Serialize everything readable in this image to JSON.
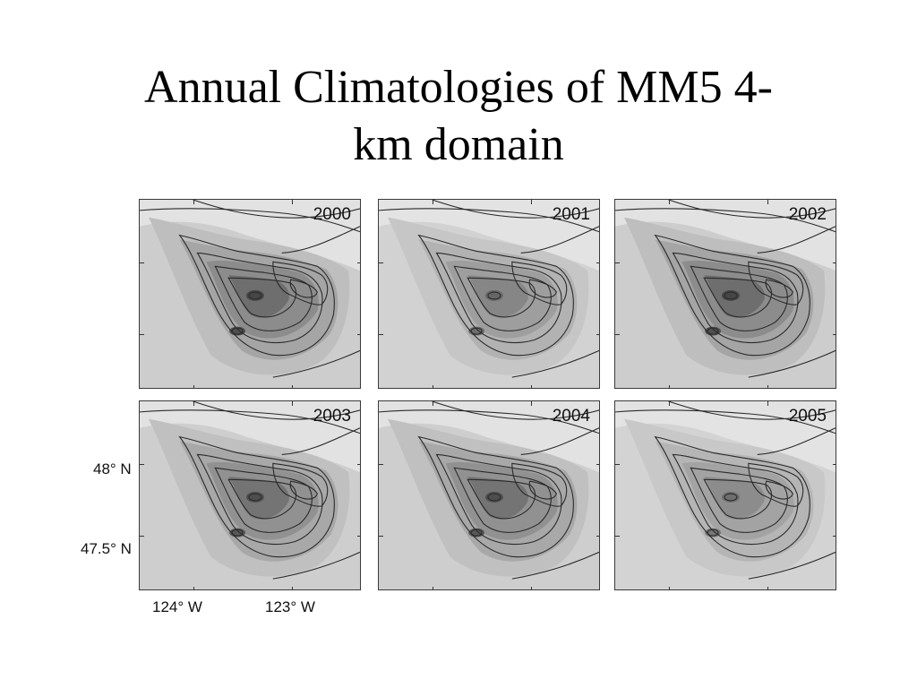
{
  "slide": {
    "title_line1": "Annual Climatologies of MM5 4-",
    "title_line2": "km domain"
  },
  "panels": [
    {
      "year": "2000"
    },
    {
      "year": "2001"
    },
    {
      "year": "2002"
    },
    {
      "year": "2003"
    },
    {
      "year": "2004"
    },
    {
      "year": "2005"
    }
  ],
  "axes": {
    "lat_labels": [
      "48° N",
      "47.5° N"
    ],
    "lon_labels": [
      "124° W",
      "123° W"
    ]
  }
}
